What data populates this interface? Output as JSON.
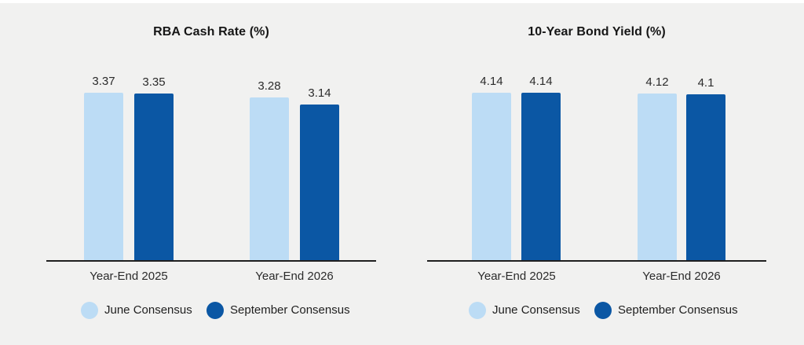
{
  "page": {
    "background": "#f1f1f0",
    "top_strip_color": "#ffffff",
    "axis_color": "#1f1f1f",
    "text_color": "#2b2b2b"
  },
  "chart_data": [
    {
      "type": "bar",
      "title": "RBA Cash Rate (%)",
      "categories": [
        "Year-End 2025",
        "Year-End 2026"
      ],
      "series": [
        {
          "name": "June Consensus",
          "color": "#bcdcf5",
          "values": [
            3.37,
            3.28
          ],
          "labels": [
            "3.37",
            "3.28"
          ]
        },
        {
          "name": "September Consensus",
          "color": "#0b57a4",
          "values": [
            3.35,
            3.14
          ],
          "labels": [
            "3.35",
            "3.14"
          ]
        }
      ],
      "ylim": [
        0,
        3.37
      ],
      "grid": false,
      "y_axis_shown": false,
      "legend_position": "bottom"
    },
    {
      "type": "bar",
      "title": "10-Year Bond Yield (%)",
      "categories": [
        "Year-End 2025",
        "Year-End 2026"
      ],
      "series": [
        {
          "name": "June Consensus",
          "color": "#bcdcf5",
          "values": [
            4.14,
            4.12
          ],
          "labels": [
            "4.14",
            "4.12"
          ]
        },
        {
          "name": "September Consensus",
          "color": "#0b57a4",
          "values": [
            4.14,
            4.1
          ],
          "labels": [
            "4.14",
            "4.1"
          ]
        }
      ],
      "ylim": [
        0,
        4.14
      ],
      "grid": false,
      "y_axis_shown": false,
      "legend_position": "bottom"
    }
  ]
}
